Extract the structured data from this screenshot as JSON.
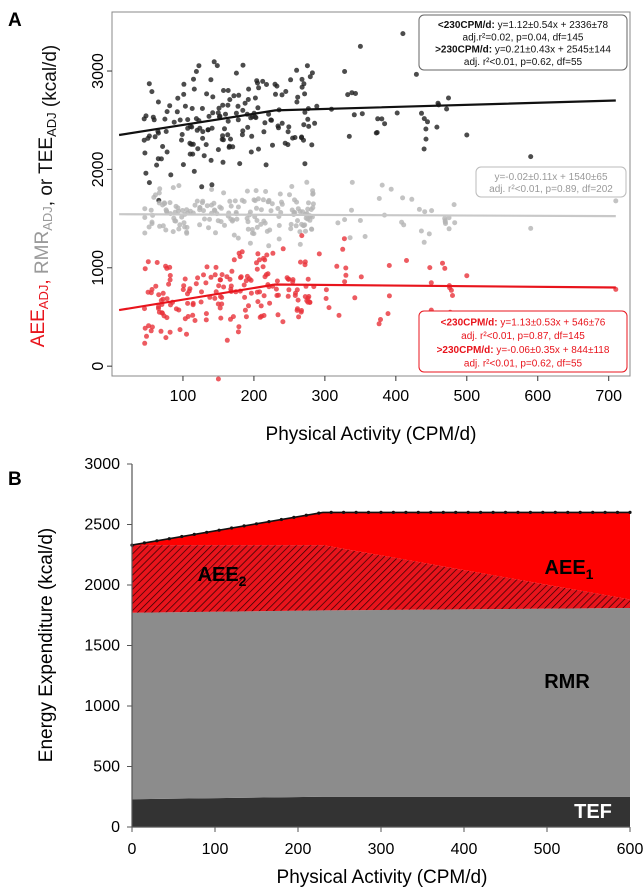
{
  "chart_data": [
    {
      "panel": "A",
      "type": "scatter",
      "xlabel_main": "Physical Activity",
      "xlabel_unit": "(CPM/d)",
      "ylabel_parts": [
        {
          "text": "AEE",
          "sub": "ADJ",
          "color": "#e8141c"
        },
        {
          "text": ", ",
          "sub": "",
          "color": "#e8141c"
        },
        {
          "text": "RMR",
          "sub": "ADJ",
          "color": "#9a9a9a"
        },
        {
          "text": ", or TEE",
          "sub": "ADJ",
          "color": "#111111"
        },
        {
          "text": " (kcal/d)",
          "sub": "",
          "color": "#111111"
        }
      ],
      "xlim": [
        0,
        730
      ],
      "ylim": [
        -100,
        3600
      ],
      "x_ticks": [
        "100",
        "200",
        "300",
        "400",
        "500",
        "600",
        "700"
      ],
      "y_ticks": [
        "0",
        "1000",
        "2000",
        "3000"
      ],
      "series": [
        {
          "color": "#1f1f1f",
          "center": 2450,
          "spread": 280,
          "count": 200,
          "fit": [
            [
              10,
              2350
            ],
            [
              230,
              2600
            ],
            [
              710,
              2700
            ]
          ],
          "extra_points": [
            [
              350,
              3250
            ],
            [
              410,
              3380
            ],
            [
              500,
              2350
            ],
            [
              590,
              2130
            ],
            [
              510,
              3050
            ]
          ]
        },
        {
          "color": "#b4b4b4",
          "center": 1540,
          "spread": 150,
          "count": 200,
          "fit": [
            [
              10,
              1545
            ],
            [
              710,
              1525
            ]
          ],
          "extra_points": [
            [
              590,
              1400
            ],
            [
              710,
              1680
            ],
            [
              470,
              1450
            ]
          ]
        },
        {
          "color": "#e8323a",
          "center": 760,
          "spread": 230,
          "count": 200,
          "fit": [
            [
              10,
              570
            ],
            [
              230,
              830
            ],
            [
              710,
              800
            ]
          ],
          "extra_points": [
            [
              710,
              780
            ],
            [
              590,
              530
            ],
            [
              500,
              920
            ],
            [
              450,
              570
            ],
            [
              150,
              -130
            ]
          ]
        }
      ],
      "annotations": [
        {
          "color": "#111111",
          "fill": "#ffffff",
          "stroke": "#666666",
          "lines": [
            {
              "bold": "<230CPM/d:",
              "text": "  y=1.12±0.54x + 2336±78",
              "size": 10.5
            },
            {
              "bold": "",
              "text": "adj.r²=0.02, p=0.04, df=145",
              "size": 10
            },
            {
              "bold": ">230CPM/d:",
              "text": " y=0.21±0.43x + 2545±144",
              "size": 10.5
            },
            {
              "bold": "",
              "text": "adj. r²<0.01, p=0.62, df=55",
              "size": 10
            }
          ]
        },
        {
          "color": "#9a9a9a",
          "fill": "#ffffff",
          "stroke": "#bbbbbb",
          "lines": [
            {
              "bold": "",
              "text": "y=-0.02±0.11x + 1540±65",
              "size": 10.5
            },
            {
              "bold": "",
              "text": "adj. r²<0.01, p=0.89, df=202",
              "size": 10
            }
          ]
        },
        {
          "color": "#e8141c",
          "fill": "#ffffff",
          "stroke": "#e8141c",
          "lines": [
            {
              "bold": "<230CPM/d:",
              "text": "  y=1.13±0.53x + 546±76",
              "size": 10.5
            },
            {
              "bold": "",
              "text": "adj. r²<0.01, p=0.87, df=145",
              "size": 10
            },
            {
              "bold": ">230CPM/d:",
              "text": " y=-0.06±0.35x + 844±118",
              "size": 10.5
            },
            {
              "bold": "",
              "text": "adj. r²<0.01, p=0.62, df=55",
              "size": 10
            }
          ]
        }
      ]
    },
    {
      "panel": "B",
      "type": "area",
      "xlabel_main": "Physical Activity",
      "xlabel_unit": "(CPM/d)",
      "ylabel": "Energy Expenditure (kcal/d)",
      "xlim": [
        0,
        600
      ],
      "ylim": [
        0,
        3000
      ],
      "x_ticks": [
        0,
        100,
        200,
        300,
        400,
        500,
        600
      ],
      "y_ticks": [
        0,
        500,
        1000,
        1500,
        2000,
        2500,
        3000
      ],
      "series": [
        {
          "name": "TEF",
          "color": "#333333",
          "label_color": "#ffffff",
          "x": [
            0,
            230,
            600
          ],
          "lower": [
            0,
            0,
            0
          ],
          "upper": [
            230,
            250,
            250
          ]
        },
        {
          "name": "RMR",
          "color": "#8c8c8c",
          "label_color": "#000000",
          "x": [
            0,
            230,
            600
          ],
          "lower": [
            230,
            250,
            250
          ],
          "upper": [
            1770,
            1790,
            1810
          ]
        },
        {
          "name": "AEE",
          "sub": "2",
          "color": "#e8141c",
          "hatched": true,
          "label_color": "#000000",
          "x": [
            0,
            230,
            600
          ],
          "lower": [
            1770,
            1790,
            1810
          ],
          "upper": [
            2330,
            2330,
            1880
          ]
        },
        {
          "name": "AEE",
          "sub": "1",
          "color": "#fe0000",
          "label_color": "#000000",
          "x": [
            0,
            230,
            600
          ],
          "lower": [
            2330,
            2330,
            1880
          ],
          "upper": [
            2330,
            2600,
            2600
          ]
        }
      ],
      "total_line": {
        "x": [
          0,
          230,
          600
        ],
        "y": [
          2330,
          2600,
          2600
        ],
        "color": "#111111"
      }
    }
  ]
}
